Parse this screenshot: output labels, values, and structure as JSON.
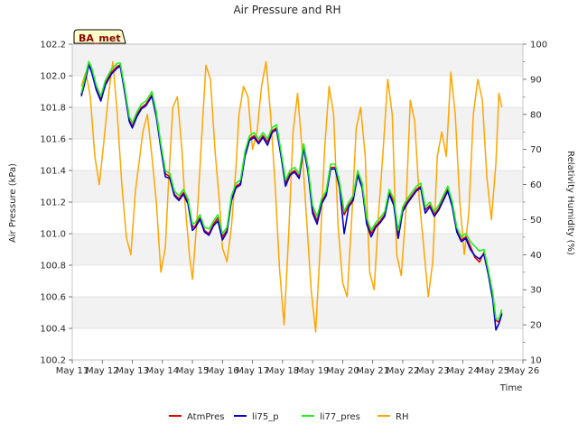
{
  "chart_data": {
    "type": "line",
    "title": "Air Pressure and RH",
    "xlabel": "Time",
    "ylabel": "Air Pressure (kPa)",
    "y2label": "Relativity Humidity (%)",
    "badge": "BA_met",
    "x_ticks": [
      "May 11",
      "May 12",
      "May 13",
      "May 14",
      "May 15",
      "May 16",
      "May 17",
      "May 18",
      "May 19",
      "May 20",
      "May 21",
      "May 22",
      "May 23",
      "May 24",
      "May 25",
      "May 26"
    ],
    "xlim": [
      0,
      15
    ],
    "ylim": [
      100.2,
      102.2
    ],
    "y_ticks": [
      100.2,
      100.4,
      100.6,
      100.8,
      101.0,
      101.2,
      101.4,
      101.6,
      101.8,
      102.0,
      102.2
    ],
    "y2lim": [
      10,
      100
    ],
    "y2_ticks": [
      10,
      20,
      30,
      40,
      50,
      60,
      70,
      80,
      90,
      100
    ],
    "grid": "horizontal bands",
    "legend_position": "bottom",
    "colors": {
      "AtmPres": "#e00000",
      "li75_p": "#0000cc",
      "li77_pres": "#22ee22",
      "RH": "#ffa500",
      "band": "#f2f2f2"
    },
    "series": [
      {
        "name": "AtmPres",
        "axis": "left",
        "x": [
          0.3,
          0.4,
          0.55,
          0.65,
          0.8,
          0.95,
          1.1,
          1.3,
          1.5,
          1.6,
          1.75,
          1.9,
          2.0,
          2.15,
          2.3,
          2.45,
          2.65,
          2.8,
          2.95,
          3.1,
          3.25,
          3.4,
          3.55,
          3.7,
          3.85,
          4.0,
          4.1,
          4.25,
          4.4,
          4.55,
          4.7,
          4.85,
          5.0,
          5.15,
          5.3,
          5.45,
          5.6,
          5.75,
          5.9,
          6.05,
          6.2,
          6.35,
          6.5,
          6.65,
          6.8,
          6.95,
          7.1,
          7.25,
          7.4,
          7.55,
          7.7,
          7.85,
          8.0,
          8.15,
          8.3,
          8.45,
          8.6,
          8.75,
          8.9,
          9.05,
          9.2,
          9.35,
          9.5,
          9.65,
          9.8,
          9.95,
          10.1,
          10.25,
          10.4,
          10.55,
          10.7,
          10.85,
          11.0,
          11.15,
          11.3,
          11.45,
          11.6,
          11.75,
          11.9,
          12.05,
          12.2,
          12.35,
          12.5,
          12.65,
          12.8,
          12.95,
          13.1,
          13.25,
          13.4,
          13.55,
          13.7,
          13.85,
          14.0,
          14.1,
          14.2,
          14.3
        ],
        "y": [
          101.88,
          101.95,
          102.08,
          102.03,
          101.92,
          101.85,
          101.95,
          102.02,
          102.06,
          102.07,
          101.9,
          101.72,
          101.68,
          101.75,
          101.8,
          101.82,
          101.88,
          101.75,
          101.55,
          101.38,
          101.36,
          101.25,
          101.22,
          101.26,
          101.2,
          101.04,
          101.05,
          101.1,
          101.02,
          101.0,
          101.06,
          101.1,
          100.98,
          101.02,
          101.22,
          101.3,
          101.32,
          101.5,
          101.6,
          101.62,
          101.58,
          101.62,
          101.58,
          101.65,
          101.67,
          101.5,
          101.32,
          101.38,
          101.4,
          101.36,
          101.55,
          101.4,
          101.15,
          101.08,
          101.2,
          101.25,
          101.42,
          101.42,
          101.3,
          101.12,
          101.18,
          101.22,
          101.38,
          101.3,
          101.08,
          101.0,
          101.05,
          101.08,
          101.12,
          101.26,
          101.2,
          101.0,
          101.15,
          101.2,
          101.24,
          101.28,
          101.3,
          101.15,
          101.18,
          101.12,
          101.16,
          101.22,
          101.28,
          101.18,
          101.02,
          100.96,
          100.98,
          100.92,
          100.85,
          100.82,
          100.88,
          100.75,
          100.6,
          100.45,
          100.44,
          100.5
        ]
      },
      {
        "name": "li75_p",
        "axis": "left",
        "x": [
          0.3,
          0.4,
          0.55,
          0.65,
          0.8,
          0.95,
          1.1,
          1.3,
          1.5,
          1.6,
          1.75,
          1.9,
          2.0,
          2.15,
          2.3,
          2.45,
          2.65,
          2.8,
          2.95,
          3.1,
          3.25,
          3.4,
          3.55,
          3.7,
          3.85,
          4.0,
          4.1,
          4.25,
          4.4,
          4.55,
          4.7,
          4.85,
          5.0,
          5.15,
          5.3,
          5.45,
          5.6,
          5.75,
          5.9,
          6.05,
          6.2,
          6.35,
          6.5,
          6.65,
          6.8,
          6.95,
          7.1,
          7.25,
          7.4,
          7.55,
          7.7,
          7.85,
          8.0,
          8.15,
          8.3,
          8.45,
          8.6,
          8.75,
          8.9,
          9.05,
          9.2,
          9.35,
          9.5,
          9.65,
          9.8,
          9.95,
          10.1,
          10.25,
          10.4,
          10.55,
          10.7,
          10.85,
          11.0,
          11.15,
          11.3,
          11.45,
          11.6,
          11.75,
          11.9,
          12.05,
          12.2,
          12.35,
          12.5,
          12.65,
          12.8,
          12.95,
          13.1,
          13.25,
          13.4,
          13.55,
          13.7,
          13.85,
          14.0,
          14.1,
          14.2,
          14.3
        ],
        "y": [
          101.87,
          101.94,
          102.07,
          102.02,
          101.91,
          101.84,
          101.94,
          102.01,
          102.05,
          102.06,
          101.89,
          101.71,
          101.67,
          101.74,
          101.79,
          101.81,
          101.87,
          101.74,
          101.54,
          101.36,
          101.35,
          101.24,
          101.21,
          101.25,
          101.19,
          101.02,
          101.04,
          101.09,
          101.01,
          100.99,
          101.05,
          101.08,
          100.96,
          101.01,
          101.21,
          101.29,
          101.31,
          101.49,
          101.59,
          101.61,
          101.57,
          101.61,
          101.56,
          101.64,
          101.66,
          101.49,
          101.3,
          101.37,
          101.39,
          101.35,
          101.54,
          101.39,
          101.13,
          101.06,
          101.19,
          101.24,
          101.41,
          101.41,
          101.29,
          101.0,
          101.17,
          101.21,
          101.37,
          101.29,
          101.06,
          100.98,
          101.04,
          101.07,
          101.11,
          101.25,
          101.18,
          100.97,
          101.14,
          101.19,
          101.23,
          101.27,
          101.29,
          101.13,
          101.17,
          101.11,
          101.15,
          101.21,
          101.27,
          101.17,
          101.01,
          100.95,
          100.97,
          100.9,
          100.86,
          100.84,
          100.87,
          100.74,
          100.58,
          100.39,
          100.43,
          100.49
        ]
      },
      {
        "name": "li77_pres",
        "axis": "left",
        "x": [
          0.3,
          0.4,
          0.55,
          0.65,
          0.8,
          0.95,
          1.1,
          1.3,
          1.5,
          1.6,
          1.75,
          1.9,
          2.0,
          2.15,
          2.3,
          2.45,
          2.65,
          2.8,
          2.95,
          3.1,
          3.25,
          3.4,
          3.55,
          3.7,
          3.85,
          4.0,
          4.1,
          4.25,
          4.4,
          4.55,
          4.7,
          4.85,
          5.0,
          5.15,
          5.3,
          5.45,
          5.6,
          5.75,
          5.9,
          6.05,
          6.2,
          6.35,
          6.5,
          6.65,
          6.8,
          6.95,
          7.1,
          7.25,
          7.4,
          7.55,
          7.7,
          7.85,
          8.0,
          8.15,
          8.3,
          8.45,
          8.6,
          8.75,
          8.9,
          9.05,
          9.2,
          9.35,
          9.5,
          9.65,
          9.8,
          9.95,
          10.1,
          10.25,
          10.4,
          10.55,
          10.7,
          10.85,
          11.0,
          11.15,
          11.3,
          11.45,
          11.6,
          11.75,
          11.9,
          12.05,
          12.2,
          12.35,
          12.5,
          12.65,
          12.8,
          12.95,
          13.1,
          13.25,
          13.4,
          13.55,
          13.7,
          13.85,
          14.0,
          14.1,
          14.2,
          14.3
        ],
        "y": [
          101.89,
          101.97,
          102.09,
          102.05,
          101.94,
          101.87,
          101.97,
          102.04,
          102.08,
          102.08,
          101.92,
          101.74,
          101.7,
          101.77,
          101.82,
          101.84,
          101.9,
          101.77,
          101.57,
          101.4,
          101.38,
          101.27,
          101.24,
          101.28,
          101.22,
          101.06,
          101.07,
          101.12,
          101.04,
          101.03,
          101.08,
          101.12,
          101.0,
          101.04,
          101.24,
          101.32,
          101.34,
          101.52,
          101.62,
          101.64,
          101.6,
          101.64,
          101.6,
          101.67,
          101.69,
          101.52,
          101.34,
          101.4,
          101.42,
          101.38,
          101.57,
          101.42,
          101.18,
          101.11,
          101.22,
          101.27,
          101.44,
          101.44,
          101.32,
          101.14,
          101.2,
          101.24,
          101.4,
          101.32,
          101.1,
          101.02,
          101.07,
          101.1,
          101.14,
          101.28,
          101.22,
          101.02,
          101.17,
          101.22,
          101.26,
          101.3,
          101.32,
          101.17,
          101.2,
          101.14,
          101.18,
          101.24,
          101.3,
          101.2,
          101.04,
          100.98,
          101.0,
          100.95,
          100.92,
          100.89,
          100.9,
          100.77,
          100.62,
          100.46,
          100.46,
          100.52
        ]
      },
      {
        "name": "RH",
        "axis": "right",
        "x": [
          0.3,
          0.45,
          0.6,
          0.75,
          0.9,
          1.05,
          1.2,
          1.35,
          1.5,
          1.65,
          1.8,
          1.95,
          2.1,
          2.25,
          2.35,
          2.5,
          2.65,
          2.8,
          2.95,
          3.1,
          3.2,
          3.35,
          3.5,
          3.65,
          3.75,
          3.9,
          4.0,
          4.15,
          4.3,
          4.45,
          4.6,
          4.75,
          4.9,
          5.0,
          5.15,
          5.3,
          5.45,
          5.55,
          5.7,
          5.85,
          6.0,
          6.15,
          6.3,
          6.45,
          6.6,
          6.75,
          6.9,
          7.05,
          7.2,
          7.35,
          7.5,
          7.65,
          7.8,
          7.95,
          8.1,
          8.25,
          8.4,
          8.55,
          8.7,
          8.85,
          9.0,
          9.15,
          9.3,
          9.45,
          9.6,
          9.75,
          9.9,
          10.05,
          10.2,
          10.35,
          10.5,
          10.65,
          10.8,
          10.95,
          11.1,
          11.25,
          11.4,
          11.55,
          11.7,
          11.85,
          12.0,
          12.15,
          12.3,
          12.45,
          12.6,
          12.75,
          12.9,
          13.05,
          13.2,
          13.35,
          13.5,
          13.65,
          13.8,
          13.95,
          14.1,
          14.2,
          14.3
        ],
        "y": [
          88,
          92,
          85,
          68,
          60,
          72,
          85,
          95,
          80,
          60,
          45,
          40,
          58,
          68,
          75,
          80,
          68,
          55,
          35,
          42,
          60,
          82,
          85,
          70,
          55,
          40,
          33,
          50,
          72,
          94,
          90,
          70,
          55,
          42,
          38,
          48,
          65,
          80,
          88,
          85,
          70,
          75,
          88,
          95,
          80,
          60,
          36,
          20,
          45,
          75,
          86,
          70,
          50,
          30,
          18,
          42,
          70,
          88,
          80,
          48,
          32,
          28,
          50,
          76,
          82,
          68,
          35,
          30,
          52,
          70,
          90,
          80,
          40,
          34,
          52,
          84,
          78,
          56,
          42,
          28,
          38,
          68,
          75,
          68,
          92,
          80,
          55,
          40,
          52,
          80,
          90,
          84,
          62,
          50,
          66,
          86,
          82
        ]
      }
    ]
  }
}
